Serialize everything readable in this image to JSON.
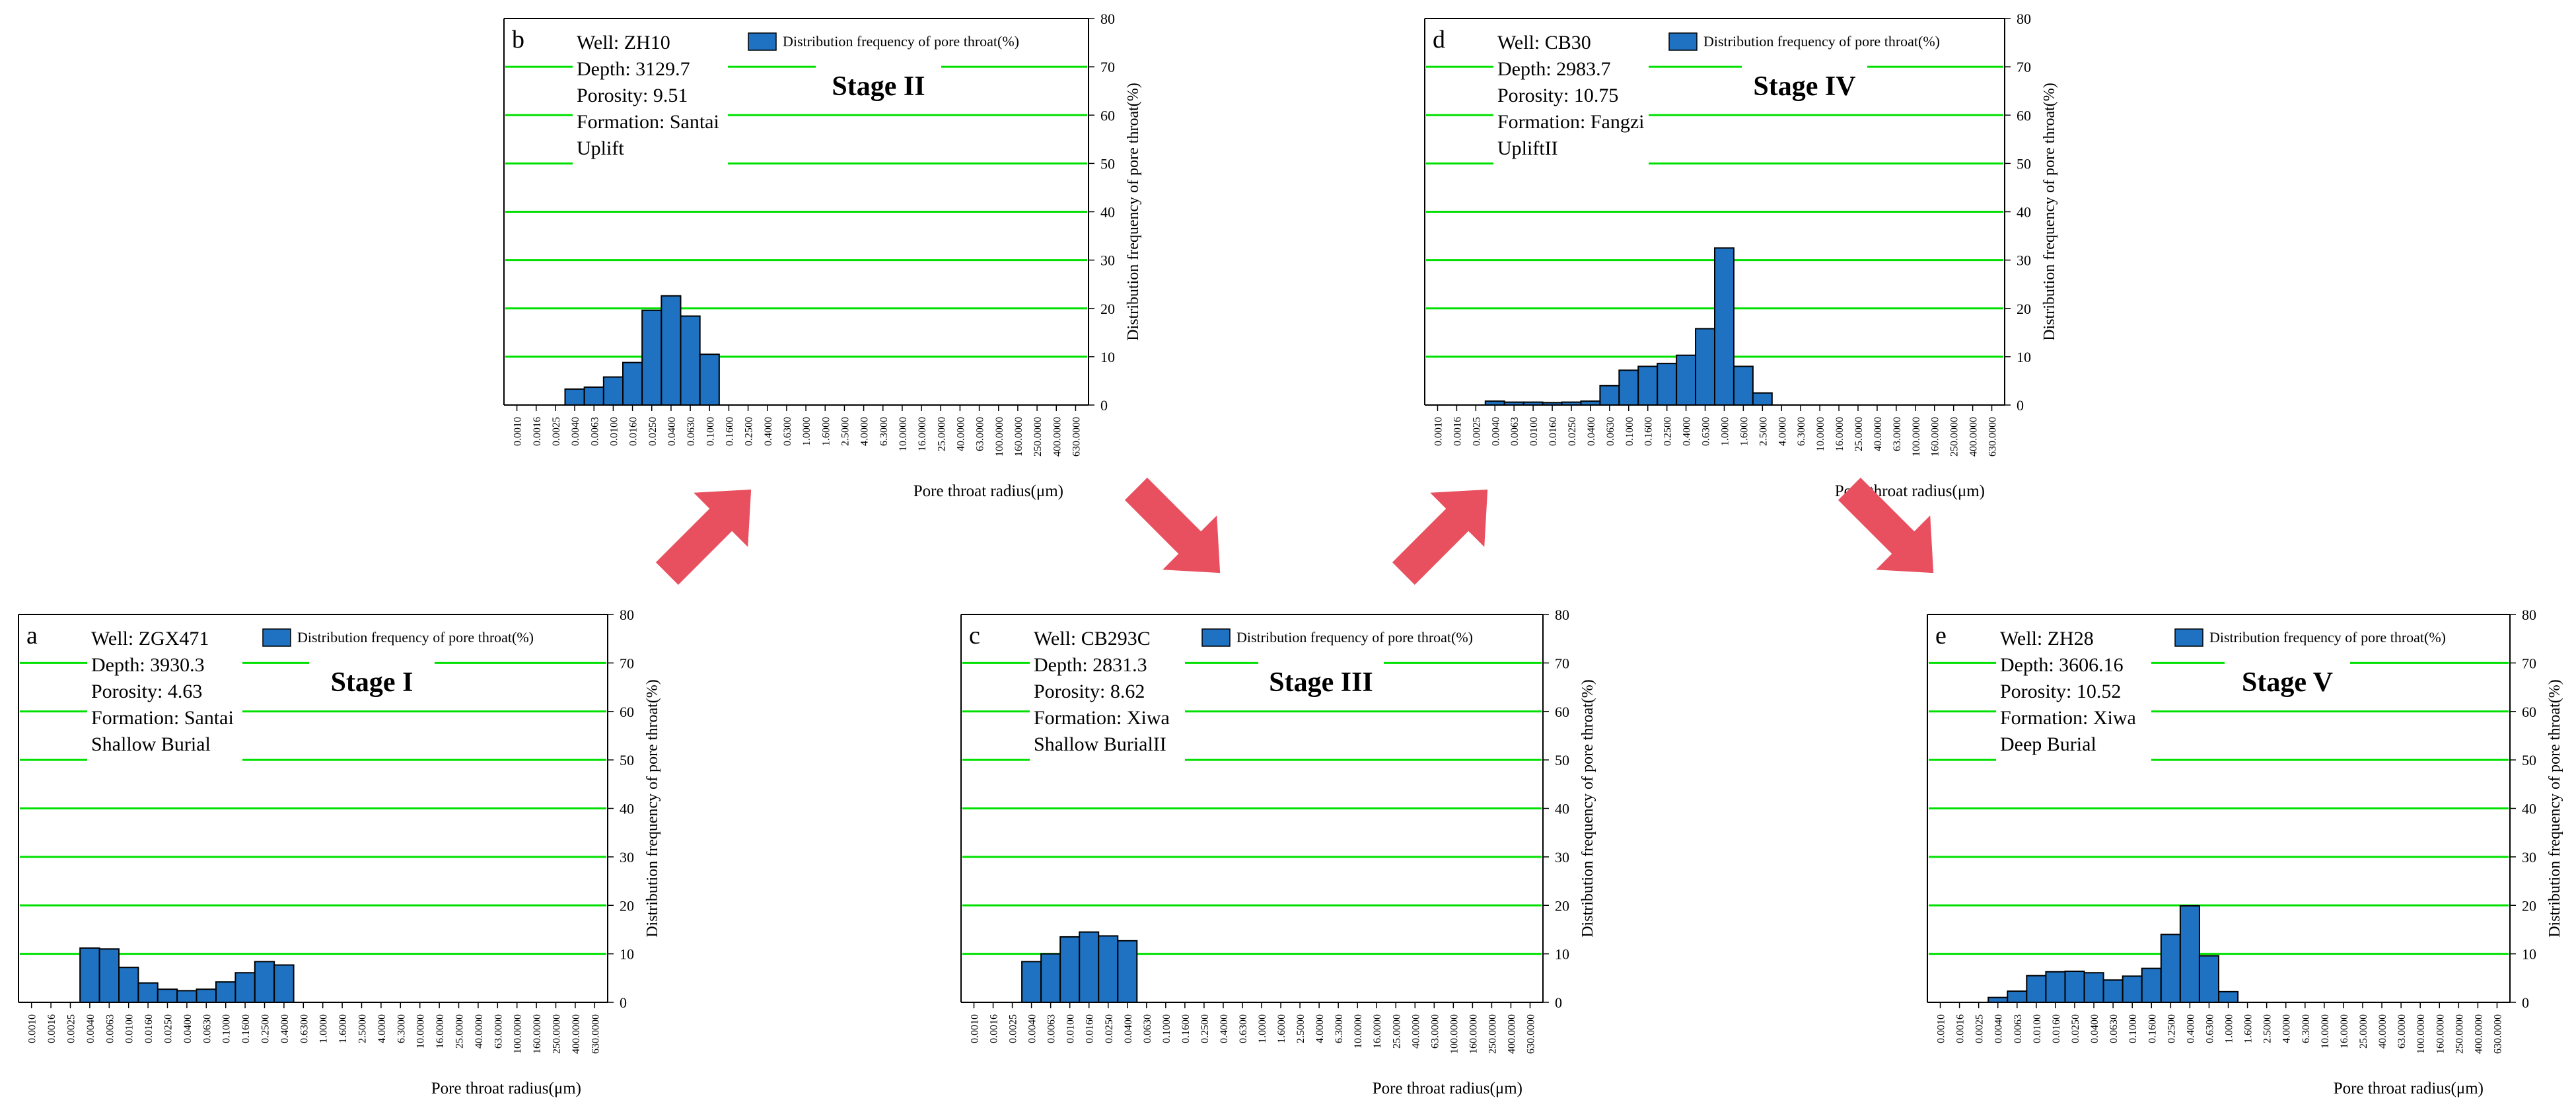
{
  "colors": {
    "bar": "#1f72c1",
    "bar_edge": "#000000",
    "grid": "#00e000",
    "arrow": "#e8505f"
  },
  "tick_font": "Liberation Serif",
  "shared": {
    "categories": [
      "0.0010",
      "0.0016",
      "0.0025",
      "0.0040",
      "0.0063",
      "0.0100",
      "0.0160",
      "0.0250",
      "0.0400",
      "0.0630",
      "0.1000",
      "0.1600",
      "0.2500",
      "0.4000",
      "0.6300",
      "1.0000",
      "1.6000",
      "2.5000",
      "4.0000",
      "6.3000",
      "10.0000",
      "16.0000",
      "25.0000",
      "40.0000",
      "63.0000",
      "100.0000",
      "160.0000",
      "250.0000",
      "400.0000",
      "630.0000"
    ],
    "xlabel": "Pore throat radius(μm)",
    "ylabel": "Distribution frequency of pore throat(%)",
    "legend": "Distribution frequency of pore throat(%)",
    "yticks": [
      0,
      10,
      20,
      30,
      40,
      50,
      60,
      70,
      80
    ]
  },
  "arrows": [
    "up-right",
    "down-right",
    "up-right",
    "down-right"
  ],
  "chart_data": [
    {
      "type": "bar",
      "id": "a",
      "letter": "a",
      "stage": "Stage I",
      "ylim": [
        0,
        80
      ],
      "grid": true,
      "info": [
        "Well: ZGX471",
        "Depth: 3930.3",
        "Porosity: 4.63",
        "Formation: Santai",
        "Shallow Burial"
      ],
      "values": [
        0,
        0,
        0,
        11.2,
        11.0,
        7.2,
        4.0,
        2.7,
        2.4,
        2.7,
        4.2,
        6.1,
        8.4,
        7.7,
        0,
        0,
        0,
        0,
        0,
        0,
        0,
        0,
        0,
        0,
        0,
        0,
        0,
        0,
        0,
        0
      ]
    },
    {
      "type": "bar",
      "id": "b",
      "letter": "b",
      "stage": "Stage II",
      "ylim": [
        0,
        80
      ],
      "grid": true,
      "info": [
        "Well: ZH10",
        "Depth: 3129.7",
        "Porosity: 9.51",
        "Formation: Santai",
        "Uplift"
      ],
      "values": [
        0,
        0,
        0,
        3.3,
        3.7,
        5.8,
        8.8,
        19.6,
        22.6,
        18.4,
        10.5,
        0,
        0,
        0,
        0,
        0,
        0,
        0,
        0,
        0,
        0,
        0,
        0,
        0,
        0,
        0,
        0,
        0,
        0,
        0
      ]
    },
    {
      "type": "bar",
      "id": "c",
      "letter": "c",
      "stage": "Stage III",
      "ylim": [
        0,
        80
      ],
      "grid": true,
      "info": [
        "Well: CB293C",
        "Depth: 2831.3",
        "Porosity: 8.62",
        "Formation: Xiwa",
        "Shallow BurialII"
      ],
      "values": [
        0,
        0,
        0,
        8.4,
        10.0,
        13.5,
        14.5,
        13.7,
        12.7,
        0,
        0,
        0,
        0,
        0,
        0,
        0,
        0,
        0,
        0,
        0,
        0,
        0,
        0,
        0,
        0,
        0,
        0,
        0,
        0,
        0
      ]
    },
    {
      "type": "bar",
      "id": "d",
      "letter": "d",
      "stage": "Stage IV",
      "ylim": [
        0,
        80
      ],
      "grid": true,
      "info": [
        "Well: CB30",
        "Depth: 2983.7",
        "Porosity: 10.75",
        "Formation: Fangzi",
        "UpliftII"
      ],
      "values": [
        0,
        0,
        0,
        0.8,
        0.6,
        0.6,
        0.5,
        0.6,
        0.8,
        4.0,
        7.2,
        8.0,
        8.6,
        10.3,
        15.8,
        32.5,
        8.0,
        2.5,
        0,
        0,
        0,
        0,
        0,
        0,
        0,
        0,
        0,
        0,
        0,
        0
      ]
    },
    {
      "type": "bar",
      "id": "e",
      "letter": "e",
      "stage": "Stage V",
      "ylim": [
        0,
        80
      ],
      "grid": true,
      "info": [
        "Well: ZH28",
        "Depth: 3606.16",
        "Porosity: 10.52",
        "Formation: Xiwa",
        "Deep Burial"
      ],
      "values": [
        0,
        0,
        0,
        1.0,
        2.3,
        5.5,
        6.3,
        6.4,
        6.1,
        4.6,
        5.4,
        7.0,
        14.0,
        19.9,
        9.6,
        2.2,
        0,
        0,
        0,
        0,
        0,
        0,
        0,
        0,
        0,
        0,
        0,
        0,
        0,
        0
      ]
    }
  ]
}
